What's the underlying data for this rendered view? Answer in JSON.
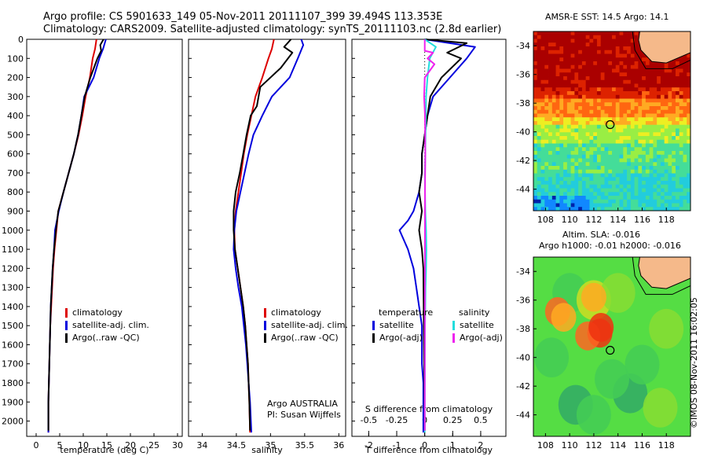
{
  "header": {
    "line1": "Argo profile: CS 5901633_149 05-Nov-2011 20111107_399 39.494S 113.353E",
    "line2": "Climatology: CARS2009. Satellite-adjusted climatology: synTS_20111103.nc (2.8d earlier)"
  },
  "colors": {
    "climatology": "#dd0000",
    "satellite": "#0000dd",
    "argo": "#000000",
    "sal_satellite": "#22dddd",
    "sal_argo": "#ee22ee"
  },
  "legend_main": {
    "climatology": "climatology",
    "satellite": "satellite-adj. clim.",
    "argo": "Argo(..raw -QC)"
  },
  "legend_diff": {
    "temp_head": "temperature",
    "sal_head": "salinity",
    "satellite": "satellite",
    "argo": "Argo(-adj)"
  },
  "credit": {
    "line1": "Argo AUSTRALIA",
    "line2": "PI: Susan Wijffels"
  },
  "sst_title": "AMSR-E SST: 14.5 Argo: 14.1",
  "sla_title1": "Altim. SLA: -0.016",
  "sla_title2": "Argo h1000: -0.01 h2000: -0.016",
  "copyright": "©IMOS 08-Nov-2011 16:02:05",
  "chart_data": [
    {
      "type": "line",
      "xlabel": "temperature (deg C)",
      "ylabel": "",
      "xlim": [
        -2,
        31
      ],
      "ylim": [
        2080,
        0
      ],
      "xticks": [
        0,
        5,
        10,
        15,
        20,
        25,
        30
      ],
      "yticks": [
        0,
        100,
        200,
        300,
        400,
        500,
        600,
        700,
        800,
        900,
        1000,
        1100,
        1200,
        1300,
        1400,
        1500,
        1600,
        1700,
        1800,
        1900,
        2000
      ],
      "series": [
        {
          "name": "climatology",
          "color": "#dd0000",
          "x": [
            12.8,
            12.5,
            12.0,
            11.4,
            10.5,
            9.8,
            9.0,
            8.0,
            6.9,
            5.8,
            4.7,
            4.3,
            3.9,
            3.6,
            3.4,
            3.2,
            3.0,
            2.9,
            2.8,
            2.7,
            2.6,
            2.6,
            2.6
          ],
          "y": [
            0,
            50,
            100,
            200,
            300,
            400,
            500,
            600,
            700,
            800,
            900,
            1000,
            1100,
            1200,
            1300,
            1400,
            1500,
            1600,
            1700,
            1800,
            1900,
            2000,
            2060
          ]
        },
        {
          "name": "satellite-adj. clim.",
          "color": "#0000dd",
          "x": [
            14.8,
            14.2,
            13.4,
            12.2,
            10.2,
            9.6,
            8.9,
            8.0,
            6.9,
            5.8,
            4.8,
            4.0,
            3.8,
            3.5,
            3.3,
            3.1,
            3.0,
            2.9,
            2.8,
            2.7,
            2.6,
            2.6
          ],
          "y": [
            0,
            50,
            100,
            200,
            300,
            400,
            500,
            600,
            700,
            800,
            900,
            1000,
            1100,
            1200,
            1300,
            1400,
            1500,
            1600,
            1700,
            1800,
            1900,
            2060
          ]
        },
        {
          "name": "Argo(..raw -QC)",
          "color": "#000000",
          "x": [
            14.3,
            13.6,
            13.8,
            13.0,
            11.5,
            10.3,
            9.6,
            8.9,
            8.0,
            6.9,
            5.8,
            4.7,
            4.2,
            3.8,
            3.5,
            3.3,
            3.1,
            3.0,
            2.9,
            2.8,
            2.7,
            2.6,
            2.6
          ],
          "y": [
            0,
            30,
            60,
            100,
            200,
            300,
            400,
            500,
            600,
            700,
            800,
            900,
            1000,
            1100,
            1200,
            1300,
            1400,
            1500,
            1600,
            1700,
            1800,
            1900,
            2050
          ]
        }
      ]
    },
    {
      "type": "line",
      "xlabel": "salinity",
      "ylabel": "",
      "xlim": [
        33.8,
        36.1
      ],
      "ylim": [
        2080,
        0
      ],
      "xticks": [
        34,
        34.5,
        35,
        35.5,
        36
      ],
      "series": [
        {
          "name": "climatology",
          "color": "#dd0000",
          "x": [
            35.05,
            35.02,
            34.97,
            34.88,
            34.78,
            34.72,
            34.66,
            34.61,
            34.57,
            34.53,
            34.49,
            34.47,
            34.48,
            34.52,
            34.56,
            34.6,
            34.63,
            34.65,
            34.67,
            34.68,
            34.69,
            34.7
          ],
          "y": [
            0,
            50,
            100,
            200,
            300,
            400,
            500,
            600,
            700,
            800,
            900,
            1000,
            1100,
            1200,
            1300,
            1400,
            1500,
            1600,
            1700,
            1800,
            1900,
            2060
          ]
        },
        {
          "name": "satellite-adj. clim.",
          "color": "#0000dd",
          "x": [
            35.45,
            35.48,
            35.4,
            35.28,
            35.02,
            34.88,
            34.75,
            34.68,
            34.62,
            34.56,
            34.5,
            34.47,
            34.46,
            34.49,
            34.53,
            34.58,
            34.61,
            34.64,
            34.66,
            34.68,
            34.7,
            34.72
          ],
          "y": [
            0,
            30,
            100,
            200,
            300,
            400,
            500,
            600,
            700,
            800,
            900,
            1000,
            1100,
            1200,
            1300,
            1400,
            1500,
            1600,
            1700,
            1800,
            1900,
            2060
          ]
        },
        {
          "name": "Argo(..raw -QC)",
          "color": "#000000",
          "x": [
            35.3,
            35.2,
            35.32,
            35.15,
            34.85,
            34.8,
            34.71,
            34.65,
            34.6,
            34.55,
            34.49,
            34.46,
            34.46,
            34.48,
            34.52,
            34.56,
            34.6,
            34.63,
            34.65,
            34.67,
            34.68,
            34.69,
            34.7
          ],
          "y": [
            0,
            40,
            70,
            150,
            250,
            350,
            400,
            500,
            600,
            700,
            800,
            900,
            1000,
            1100,
            1200,
            1300,
            1400,
            1500,
            1600,
            1700,
            1800,
            1900,
            2050
          ]
        }
      ]
    },
    {
      "type": "line",
      "xlabel": "T difference from climatology",
      "x2label": "S difference from climatology",
      "ylabel": "",
      "xlim": [
        -2.6,
        2.9
      ],
      "ylim": [
        2080,
        0
      ],
      "xticks": [
        -2,
        -1,
        0,
        1,
        2
      ],
      "x2ticks": [
        -0.5,
        -0.25,
        0,
        0.25,
        0.5
      ],
      "x2scale": 4,
      "series": [
        {
          "name": "satellite",
          "group": "temperature",
          "color": "#0000dd",
          "x": [
            0.0,
            1.8,
            1.5,
            0.9,
            0.3,
            0.1,
            0.0,
            -0.1,
            -0.1,
            -0.2,
            -0.4,
            -0.6,
            -0.9,
            -0.6,
            -0.4,
            -0.3,
            -0.2,
            -0.1,
            -0.1,
            -0.1,
            -0.05,
            -0.05
          ],
          "y": [
            0,
            40,
            100,
            200,
            300,
            400,
            500,
            600,
            700,
            800,
            900,
            950,
            1000,
            1100,
            1200,
            1300,
            1400,
            1500,
            1600,
            1700,
            1800,
            2060
          ]
        },
        {
          "name": "Argo(-adj)",
          "group": "temperature",
          "color": "#000000",
          "x": [
            0.0,
            1.5,
            0.8,
            1.3,
            0.6,
            0.2,
            0.1,
            0.0,
            -0.1,
            -0.1,
            -0.2,
            -0.1,
            -0.2,
            -0.1,
            -0.05,
            0.0
          ],
          "y": [
            0,
            20,
            70,
            100,
            200,
            300,
            400,
            500,
            600,
            700,
            800,
            900,
            1000,
            1100,
            1200,
            2050
          ]
        },
        {
          "name": "satellite",
          "group": "salinity",
          "color": "#22dddd",
          "x": [
            0.0,
            0.4,
            0.18,
            0.1,
            0.05,
            0.04,
            0.03,
            0.02,
            0.01,
            0.01,
            0.02,
            0.05,
            0.06,
            0.05,
            0.03,
            0.02,
            0.01,
            0.0
          ],
          "y": [
            0,
            40,
            100,
            200,
            300,
            400,
            500,
            600,
            700,
            800,
            900,
            1000,
            1100,
            1200,
            1300,
            1400,
            1500,
            2060
          ]
        },
        {
          "name": "Argo(-adj)",
          "group": "salinity",
          "color": "#ee22ee",
          "x": [
            0.0,
            0.0,
            0.3,
            0.1,
            0.35,
            0.0,
            -0.02,
            0.01,
            0.02,
            0.01,
            0.0
          ],
          "y": [
            0,
            60,
            70,
            100,
            130,
            200,
            300,
            400,
            600,
            800,
            2050
          ]
        }
      ]
    },
    {
      "type": "heatmap",
      "title": "AMSR-E SST: 14.5 Argo: 14.1",
      "xlim": [
        107,
        120
      ],
      "ylim": [
        -45.5,
        -33
      ],
      "xticks": [
        108,
        110,
        112,
        114,
        116,
        118
      ],
      "yticks": [
        -34,
        -36,
        -38,
        -40,
        -42,
        -44
      ],
      "argo_position": [
        113.353,
        -39.494
      ],
      "palette": [
        "#0022aa",
        "#1188ff",
        "#22ccdd",
        "#44dd99",
        "#99ee44",
        "#eeee22",
        "#ffaa22",
        "#ff6611",
        "#dd2200",
        "#aa0000"
      ]
    },
    {
      "type": "heatmap",
      "title": "Altim. SLA: -0.016",
      "xlim": [
        107,
        120
      ],
      "ylim": [
        -45.5,
        -33
      ],
      "xticks": [
        108,
        110,
        112,
        114,
        116,
        118
      ],
      "yticks": [
        -34,
        -36,
        -38,
        -40,
        -42,
        -44
      ],
      "argo_position": [
        113.353,
        -39.494
      ],
      "palette": [
        "#33aa66",
        "#44cc55",
        "#55dd44",
        "#88dd33",
        "#ccdd22",
        "#ffaa22",
        "#ff6622",
        "#ee3311"
      ]
    }
  ]
}
